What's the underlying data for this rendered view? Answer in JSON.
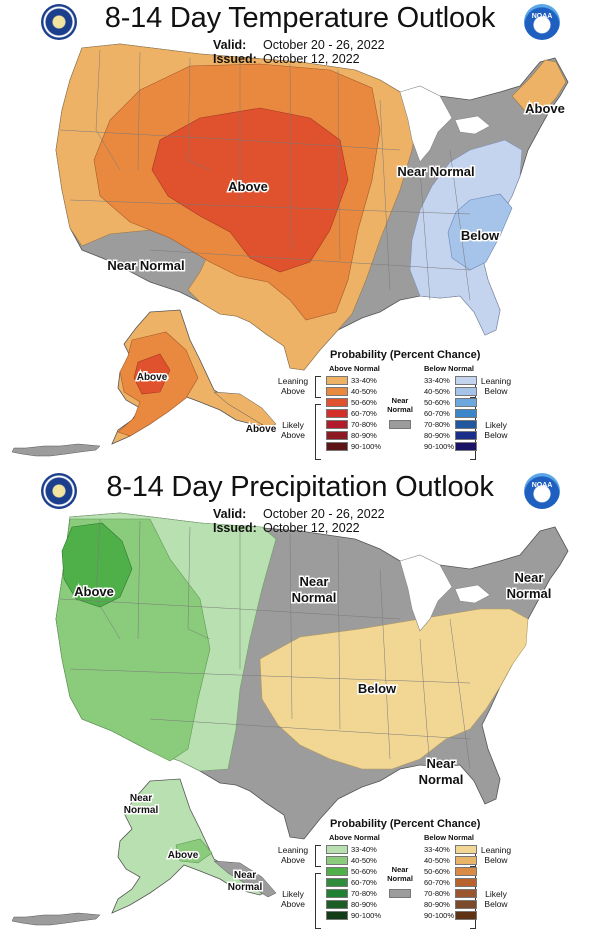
{
  "temperature": {
    "title": "8-14 Day Temperature Outlook",
    "valid_label": "Valid:",
    "valid_value": "October 20 - 26, 2022",
    "issued_label": "Issued:",
    "issued_value": "October 12, 2022",
    "agency_badge_left": "Department of Commerce seal",
    "agency_badge_right": "NOAA",
    "region_labels": [
      "Above",
      "Near Normal",
      "Below",
      "Above",
      "Near Normal",
      "Above",
      "Above"
    ],
    "legend": {
      "title": "Probability (Percent Chance)",
      "above_head": "Above Normal",
      "near_head": "Near Normal",
      "below_head": "Below Normal",
      "left_labels": [
        "Leaning Above",
        "Likely Above"
      ],
      "right_labels": [
        "Leaning Below",
        "Likely Below"
      ],
      "bins": [
        "33-40%",
        "40-50%",
        "50-60%",
        "60-70%",
        "70-80%",
        "80-90%",
        "90-100%"
      ],
      "above_colors": [
        "#eeb266",
        "#e8893f",
        "#e0512e",
        "#d3302a",
        "#b01a2a",
        "#8c1a22",
        "#5c1414"
      ],
      "below_colors": [
        "#c5d4ee",
        "#a6c3ea",
        "#6ca7de",
        "#3b86c9",
        "#20579f",
        "#1b2f88",
        "#1a1466"
      ],
      "near_color": "#9c9c9c"
    }
  },
  "precipitation": {
    "title": "8-14 Day Precipitation Outlook",
    "valid_label": "Valid:",
    "valid_value": "October 20 - 26, 2022",
    "issued_label": "Issued:",
    "issued_value": "October 12, 2022",
    "agency_badge_left": "Department of Commerce seal",
    "agency_badge_right": "NOAA",
    "region_labels": [
      "Above",
      "Near Normal",
      "Near Normal",
      "Below",
      "Near Normal",
      "Near Normal",
      "Above",
      "Near Normal"
    ],
    "legend": {
      "title": "Probability (Percent Chance)",
      "above_head": "Above Normal",
      "near_head": "Near Normal",
      "below_head": "Below Normal",
      "left_labels": [
        "Leaning Above",
        "Likely Above"
      ],
      "right_labels": [
        "Leaning Below",
        "Likely Below"
      ],
      "bins": [
        "33-40%",
        "40-50%",
        "50-60%",
        "60-70%",
        "70-80%",
        "80-90%",
        "90-100%"
      ],
      "above_colors": [
        "#b8e0b0",
        "#8bcb7c",
        "#4fb04a",
        "#2e8c3c",
        "#1f7f33",
        "#1c5c25",
        "#123d18"
      ],
      "below_colors": [
        "#f2d694",
        "#e8b46a",
        "#d98a45",
        "#b8632e",
        "#9b5630",
        "#7b4a2a",
        "#5e3212"
      ],
      "near_color": "#9c9c9c"
    }
  },
  "map_colors": {
    "ocean": "#ffffff",
    "lake": "#ffffff",
    "state_lines": "#7a7a7a",
    "near": "#9c9c9c",
    "temp_lean_above": "#eeb266",
    "temp_above_40": "#e8893f",
    "temp_above_50": "#e0512e",
    "temp_lean_below": "#c5d4ee",
    "temp_below_40": "#a6c3ea",
    "precip_lean_above": "#b8e0b0",
    "precip_above_40": "#8bcb7c",
    "precip_above_50": "#4fb04a",
    "precip_lean_below": "#f2d694"
  }
}
